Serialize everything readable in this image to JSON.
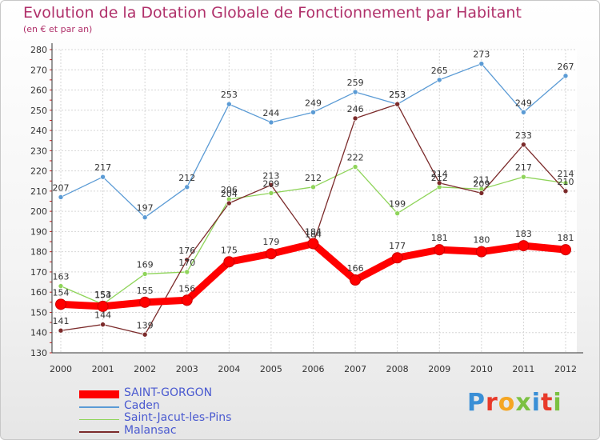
{
  "title": "Evolution de la Dotation Globale de Fonctionnement par Habitant",
  "subtitle": "(en € et par an)",
  "brand": "Proxiti",
  "chart_data": {
    "type": "line",
    "title": "Evolution de la Dotation Globale de Fonctionnement par Habitant",
    "subtitle": "(en € et par an)",
    "x": [
      "2000",
      "2001",
      "2002",
      "2003",
      "2004",
      "2005",
      "2006",
      "2007",
      "2008",
      "2009",
      "2010",
      "2011",
      "2012"
    ],
    "ylim": [
      130,
      280
    ],
    "yticks": [
      130,
      140,
      150,
      160,
      170,
      180,
      190,
      200,
      210,
      220,
      230,
      240,
      250,
      260,
      270,
      280
    ],
    "grid": true,
    "legend": "bottom-left",
    "series": [
      {
        "name": "SAINT-GORGON",
        "color": "#ff0000",
        "values": [
          154,
          153,
          155,
          156,
          175,
          179,
          184,
          166,
          177,
          181,
          180,
          183,
          181
        ]
      },
      {
        "name": "Caden",
        "color": "#5b9bd5",
        "values": [
          207,
          217,
          197,
          212,
          253,
          244,
          249,
          259,
          253,
          265,
          273,
          249,
          267
        ]
      },
      {
        "name": "Saint-Jacut-les-Pins",
        "color": "#8fd45a",
        "values": [
          163,
          154,
          169,
          170,
          206,
          209,
          212,
          222,
          199,
          212,
          211,
          217,
          214
        ]
      },
      {
        "name": "Malansac",
        "color": "#7b2a2a",
        "values": [
          141,
          144,
          139,
          176,
          204,
          213,
          184,
          246,
          253,
          214,
          209,
          233,
          210
        ]
      }
    ]
  }
}
